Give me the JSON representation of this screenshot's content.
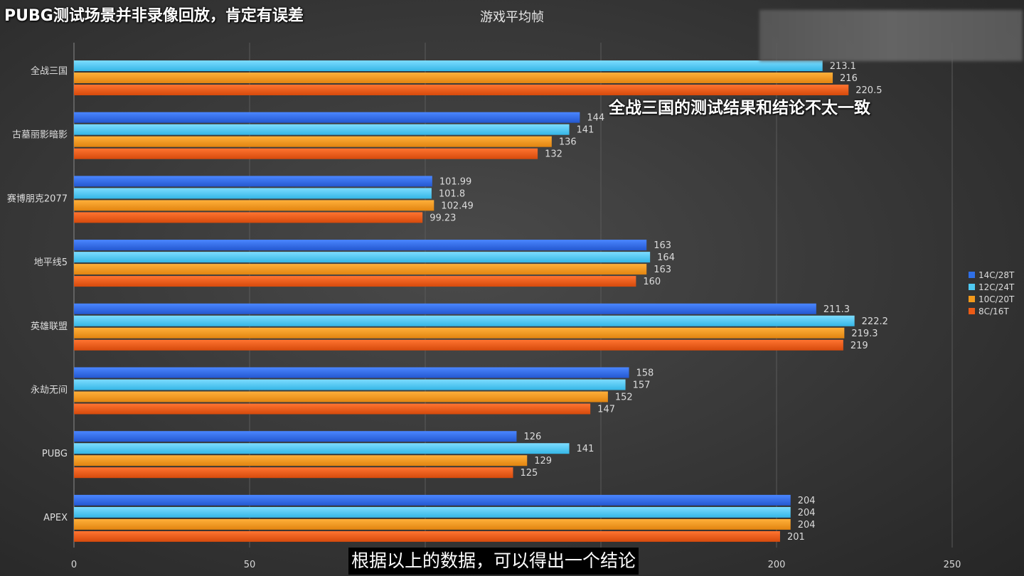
{
  "overlay": {
    "title": "PUBG测试场景并非录像回放，肯定有误差",
    "annotation": "全战三国的测试结果和结论不太一致",
    "subtitle": "根据以上的数据，可以得出一个结论"
  },
  "chart_data": {
    "type": "bar",
    "orientation": "horizontal",
    "title": "游戏平均帧",
    "xlabel": "",
    "ylabel": "",
    "xlim": [
      0,
      250
    ],
    "xticks": [
      0,
      50,
      100,
      150,
      200,
      250
    ],
    "grid": true,
    "legend_position": "right",
    "categories": [
      "全战三国",
      "古墓丽影暗影",
      "赛博朋克2077",
      "地平线5",
      "英雄联盟",
      "永劫无间",
      "PUBG",
      "APEX"
    ],
    "series": [
      {
        "name": "14C/28T",
        "color": "#2f6fe6",
        "values": [
          null,
          144,
          101.99,
          163,
          211.3,
          158,
          126,
          204
        ],
        "labels": [
          "",
          "144",
          "101.99",
          "163",
          "211.3",
          "158",
          "126",
          "204"
        ]
      },
      {
        "name": "12C/24T",
        "color": "#4fc9f2",
        "values": [
          213.1,
          141,
          101.8,
          164,
          222.2,
          157,
          141,
          204
        ],
        "labels": [
          "213.1",
          "141",
          "101.8",
          "164",
          "222.2",
          "157",
          "141",
          "204"
        ]
      },
      {
        "name": "10C/20T",
        "color": "#f39a1c",
        "values": [
          216,
          136,
          102.49,
          163,
          219.3,
          152,
          129,
          204
        ],
        "labels": [
          "216",
          "136",
          "102.49",
          "163",
          "219.3",
          "152",
          "129",
          "204"
        ]
      },
      {
        "name": "8C/16T",
        "color": "#ec5b16",
        "values": [
          220.5,
          132,
          99.23,
          160,
          219,
          147,
          125,
          201
        ],
        "labels": [
          "220.5",
          "132",
          "99.23",
          "160",
          "219",
          "147",
          "125",
          "201"
        ]
      }
    ]
  }
}
